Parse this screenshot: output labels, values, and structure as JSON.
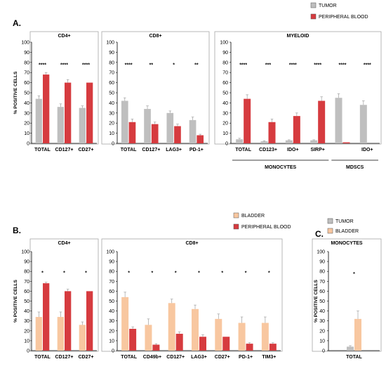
{
  "colors": {
    "tumor": "#bfbfbf",
    "blood": "#d63b3f",
    "bladder": "#f8c7a0",
    "axis": "#000000",
    "grid": "#a6a6a6"
  },
  "figure": {
    "panel_letters": [
      "A.",
      "B.",
      "C."
    ],
    "legends": [
      {
        "items": [
          {
            "label": "TUMOR",
            "color": "#bfbfbf"
          },
          {
            "label": "PERIPHERAL BLOOD",
            "color": "#d63b3f"
          }
        ]
      },
      {
        "items": [
          {
            "label": "BLADDER",
            "color": "#f8c7a0"
          },
          {
            "label": "PERIPHERAL BLOOD",
            "color": "#d63b3f"
          }
        ]
      },
      {
        "items": [
          {
            "label": "TUMOR",
            "color": "#bfbfbf"
          },
          {
            "label": "BLADDER",
            "color": "#f8c7a0"
          }
        ]
      }
    ],
    "group_labels": [
      "MONOCYTES",
      "MDSCS"
    ]
  },
  "chart_data": [
    {
      "id": "A-CD4",
      "type": "bar",
      "title": "CD4+",
      "ylabel": "% POSITIVE CELLS",
      "ylim": [
        0,
        100
      ],
      "yticks": [
        0,
        10,
        20,
        30,
        40,
        50,
        60,
        70,
        80,
        90,
        100
      ],
      "categories": [
        "TOTAL",
        "CD127+",
        "CD27+"
      ],
      "series": [
        {
          "name": "TUMOR",
          "values": [
            44,
            36,
            35
          ],
          "errors": [
            3,
            3,
            2
          ]
        },
        {
          "name": "PERIPHERAL BLOOD",
          "values": [
            68,
            60,
            60
          ],
          "errors": [
            2,
            3,
            0
          ]
        }
      ],
      "significance": [
        "****",
        "****",
        "****"
      ]
    },
    {
      "id": "A-CD8",
      "type": "bar",
      "title": "CD8+",
      "ylim": [
        0,
        100
      ],
      "yticks": [
        0,
        10,
        20,
        30,
        40,
        50,
        60,
        70,
        80,
        90,
        100
      ],
      "categories": [
        "TOTAL",
        "CD127+",
        "LAG3+",
        "PD-1+"
      ],
      "series": [
        {
          "name": "TUMOR",
          "values": [
            42,
            34,
            30,
            23
          ],
          "errors": [
            3,
            3,
            2,
            3
          ]
        },
        {
          "name": "PERIPHERAL BLOOD",
          "values": [
            21,
            19,
            17,
            8
          ],
          "errors": [
            3,
            2,
            2,
            1
          ]
        }
      ],
      "significance": [
        "****",
        "**",
        "*",
        "**"
      ]
    },
    {
      "id": "A-MYELOID",
      "type": "bar",
      "title": "MYELOID",
      "ylim": [
        0,
        100
      ],
      "yticks": [
        0,
        10,
        20,
        30,
        40,
        50,
        60,
        70,
        80,
        90,
        100
      ],
      "categories": [
        "TOTAL",
        "CD123+",
        "IDO+",
        "SIRP+",
        "",
        "IDO+"
      ],
      "series": [
        {
          "name": "TUMOR",
          "values": [
            4,
            2,
            3,
            3,
            45,
            38
          ],
          "errors": [
            1,
            0.5,
            0.5,
            0.5,
            4,
            4
          ]
        },
        {
          "name": "PERIPHERAL BLOOD",
          "values": [
            44,
            21,
            27,
            42,
            1,
            0
          ],
          "errors": [
            4,
            3,
            3,
            4,
            0,
            0
          ]
        }
      ],
      "significance": [
        "****",
        "***",
        "****",
        "****",
        "****",
        "****"
      ]
    },
    {
      "id": "B-CD4",
      "type": "bar",
      "title": "CD4+",
      "ylabel": "% POSITIVE CELLS",
      "ylim": [
        0,
        100
      ],
      "yticks": [
        0,
        10,
        20,
        30,
        40,
        50,
        60,
        70,
        80,
        90,
        100
      ],
      "categories": [
        "TOTAL",
        "CD127+",
        "CD27+"
      ],
      "series": [
        {
          "name": "BLADDER",
          "values": [
            34,
            34,
            26
          ],
          "errors": [
            5,
            5,
            3
          ]
        },
        {
          "name": "PERIPHERAL BLOOD",
          "values": [
            68,
            60,
            60
          ],
          "errors": [
            1,
            2,
            0
          ]
        }
      ],
      "significance": [
        "*",
        "*",
        "*"
      ]
    },
    {
      "id": "B-CD8",
      "type": "bar",
      "title": "CD8+",
      "ylim": [
        0,
        100
      ],
      "yticks": [
        0,
        10,
        20,
        30,
        40,
        50,
        60,
        70,
        80,
        90,
        100
      ],
      "categories": [
        "TOTAL",
        "CD49b+",
        "CD127+",
        "LAG3+",
        "CD27+",
        "PD-1+",
        "TIM3+"
      ],
      "series": [
        {
          "name": "BLADDER",
          "values": [
            54,
            26,
            48,
            42,
            32,
            28,
            28
          ],
          "errors": [
            5,
            6,
            4,
            4,
            5,
            6,
            6
          ]
        },
        {
          "name": "PERIPHERAL BLOOD",
          "values": [
            22,
            6,
            17,
            14,
            14,
            7,
            7
          ],
          "errors": [
            2,
            1,
            2,
            2,
            0,
            1,
            1
          ]
        }
      ],
      "significance": [
        "*",
        "*",
        "*",
        "*",
        "*",
        "*",
        "*"
      ]
    },
    {
      "id": "C-MONOCYTES",
      "type": "bar",
      "title": "MONOCYTES",
      "ylabel": "% POSITIVE CELLS",
      "ylim": [
        0,
        100
      ],
      "yticks": [
        0,
        10,
        20,
        30,
        40,
        50,
        60,
        70,
        80,
        90,
        100
      ],
      "categories": [
        "TOTAL"
      ],
      "series": [
        {
          "name": "TUMOR",
          "values": [
            4
          ],
          "errors": [
            1
          ]
        },
        {
          "name": "BLADDER",
          "values": [
            32
          ],
          "errors": [
            8
          ]
        }
      ],
      "significance": [
        "*"
      ]
    }
  ]
}
